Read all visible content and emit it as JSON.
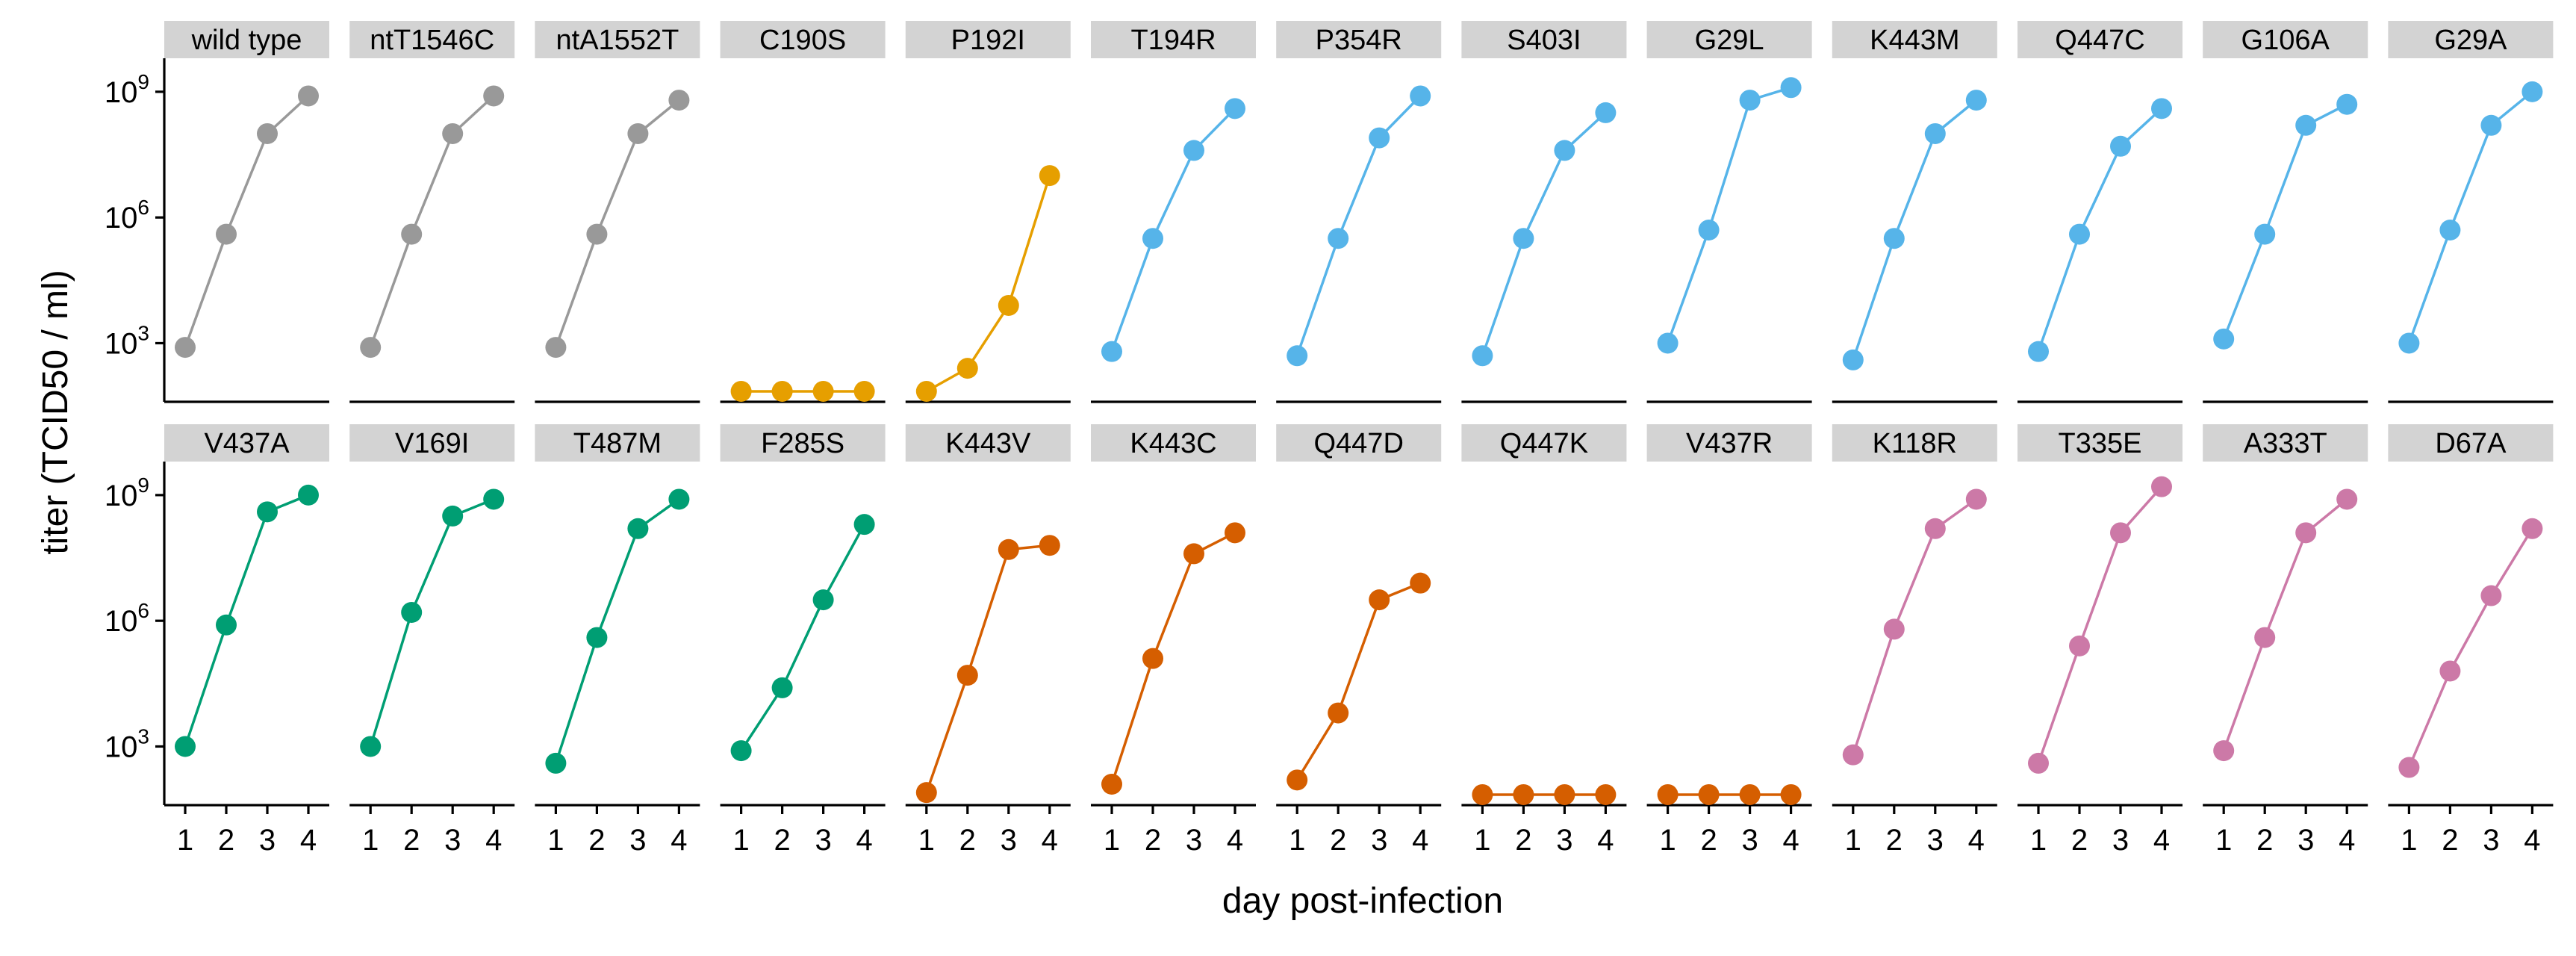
{
  "chart_data": {
    "type": "line",
    "xlabel": "day post-infection",
    "ylabel": "titer (TCID50 / ml)",
    "x_ticks": [
      1,
      2,
      3,
      4
    ],
    "y_scale": "log10",
    "y_ticks": [
      3,
      6,
      9
    ],
    "y_tick_labels": [
      "10",
      "10",
      "10"
    ],
    "y_tick_exponents": [
      "3",
      "6",
      "9"
    ],
    "ylim_log10": [
      1.6,
      9.8
    ],
    "grid": false,
    "legend": "none",
    "colors": {
      "gray": "#999999",
      "orange": "#E69F00",
      "blue": "#56B4E9",
      "green": "#009E73",
      "vermillion": "#D55E00",
      "pink": "#CC79A7"
    },
    "panels": [
      {
        "name": "wild type",
        "color": "gray",
        "log10_titer": [
          2.9,
          5.6,
          8.0,
          8.9
        ]
      },
      {
        "name": "ntT1546C",
        "color": "gray",
        "log10_titer": [
          2.9,
          5.6,
          8.0,
          8.9
        ]
      },
      {
        "name": "ntA1552T",
        "color": "gray",
        "log10_titer": [
          2.9,
          5.6,
          8.0,
          8.8
        ]
      },
      {
        "name": "C190S",
        "color": "orange",
        "log10_titer": [
          1.85,
          1.85,
          1.85,
          1.85
        ]
      },
      {
        "name": "P192I",
        "color": "orange",
        "log10_titer": [
          1.85,
          2.4,
          3.9,
          7.0
        ]
      },
      {
        "name": "T194R",
        "color": "blue",
        "log10_titer": [
          2.8,
          5.5,
          7.6,
          8.6
        ]
      },
      {
        "name": "P354R",
        "color": "blue",
        "log10_titer": [
          2.7,
          5.5,
          7.9,
          8.9
        ]
      },
      {
        "name": "S403I",
        "color": "blue",
        "log10_titer": [
          2.7,
          5.5,
          7.6,
          8.5
        ]
      },
      {
        "name": "G29L",
        "color": "blue",
        "log10_titer": [
          3.0,
          5.7,
          8.8,
          9.1
        ]
      },
      {
        "name": "K443M",
        "color": "blue",
        "log10_titer": [
          2.6,
          5.5,
          8.0,
          8.8
        ]
      },
      {
        "name": "Q447C",
        "color": "blue",
        "log10_titer": [
          2.8,
          5.6,
          7.7,
          8.6
        ]
      },
      {
        "name": "G106A",
        "color": "blue",
        "log10_titer": [
          3.1,
          5.6,
          8.2,
          8.7
        ]
      },
      {
        "name": "G29A",
        "color": "blue",
        "log10_titer": [
          3.0,
          5.7,
          8.2,
          9.0
        ]
      },
      {
        "name": "V437A",
        "color": "green",
        "log10_titer": [
          3.0,
          5.9,
          8.6,
          9.0
        ]
      },
      {
        "name": "V169I",
        "color": "green",
        "log10_titer": [
          3.0,
          6.2,
          8.5,
          8.9
        ]
      },
      {
        "name": "T487M",
        "color": "green",
        "log10_titer": [
          2.6,
          5.6,
          8.2,
          8.9
        ]
      },
      {
        "name": "F285S",
        "color": "green",
        "log10_titer": [
          2.9,
          4.4,
          6.5,
          8.3
        ]
      },
      {
        "name": "K443V",
        "color": "vermillion",
        "log10_titer": [
          1.9,
          4.7,
          7.7,
          7.8
        ]
      },
      {
        "name": "K443C",
        "color": "vermillion",
        "log10_titer": [
          2.1,
          5.1,
          7.6,
          8.1
        ]
      },
      {
        "name": "Q447D",
        "color": "vermillion",
        "log10_titer": [
          2.2,
          3.8,
          6.5,
          6.9
        ]
      },
      {
        "name": "Q447K",
        "color": "vermillion",
        "log10_titer": [
          1.85,
          1.85,
          1.85,
          1.85
        ]
      },
      {
        "name": "V437R",
        "color": "vermillion",
        "log10_titer": [
          1.85,
          1.85,
          1.85,
          1.85
        ]
      },
      {
        "name": "K118R",
        "color": "pink",
        "log10_titer": [
          2.8,
          5.8,
          8.2,
          8.9
        ]
      },
      {
        "name": "T335E",
        "color": "pink",
        "log10_titer": [
          2.6,
          5.4,
          8.1,
          9.2
        ]
      },
      {
        "name": "A333T",
        "color": "pink",
        "log10_titer": [
          2.9,
          5.6,
          8.1,
          8.9
        ]
      },
      {
        "name": "D67A",
        "color": "pink",
        "log10_titer": [
          2.5,
          4.8,
          6.6,
          8.2
        ]
      }
    ]
  }
}
